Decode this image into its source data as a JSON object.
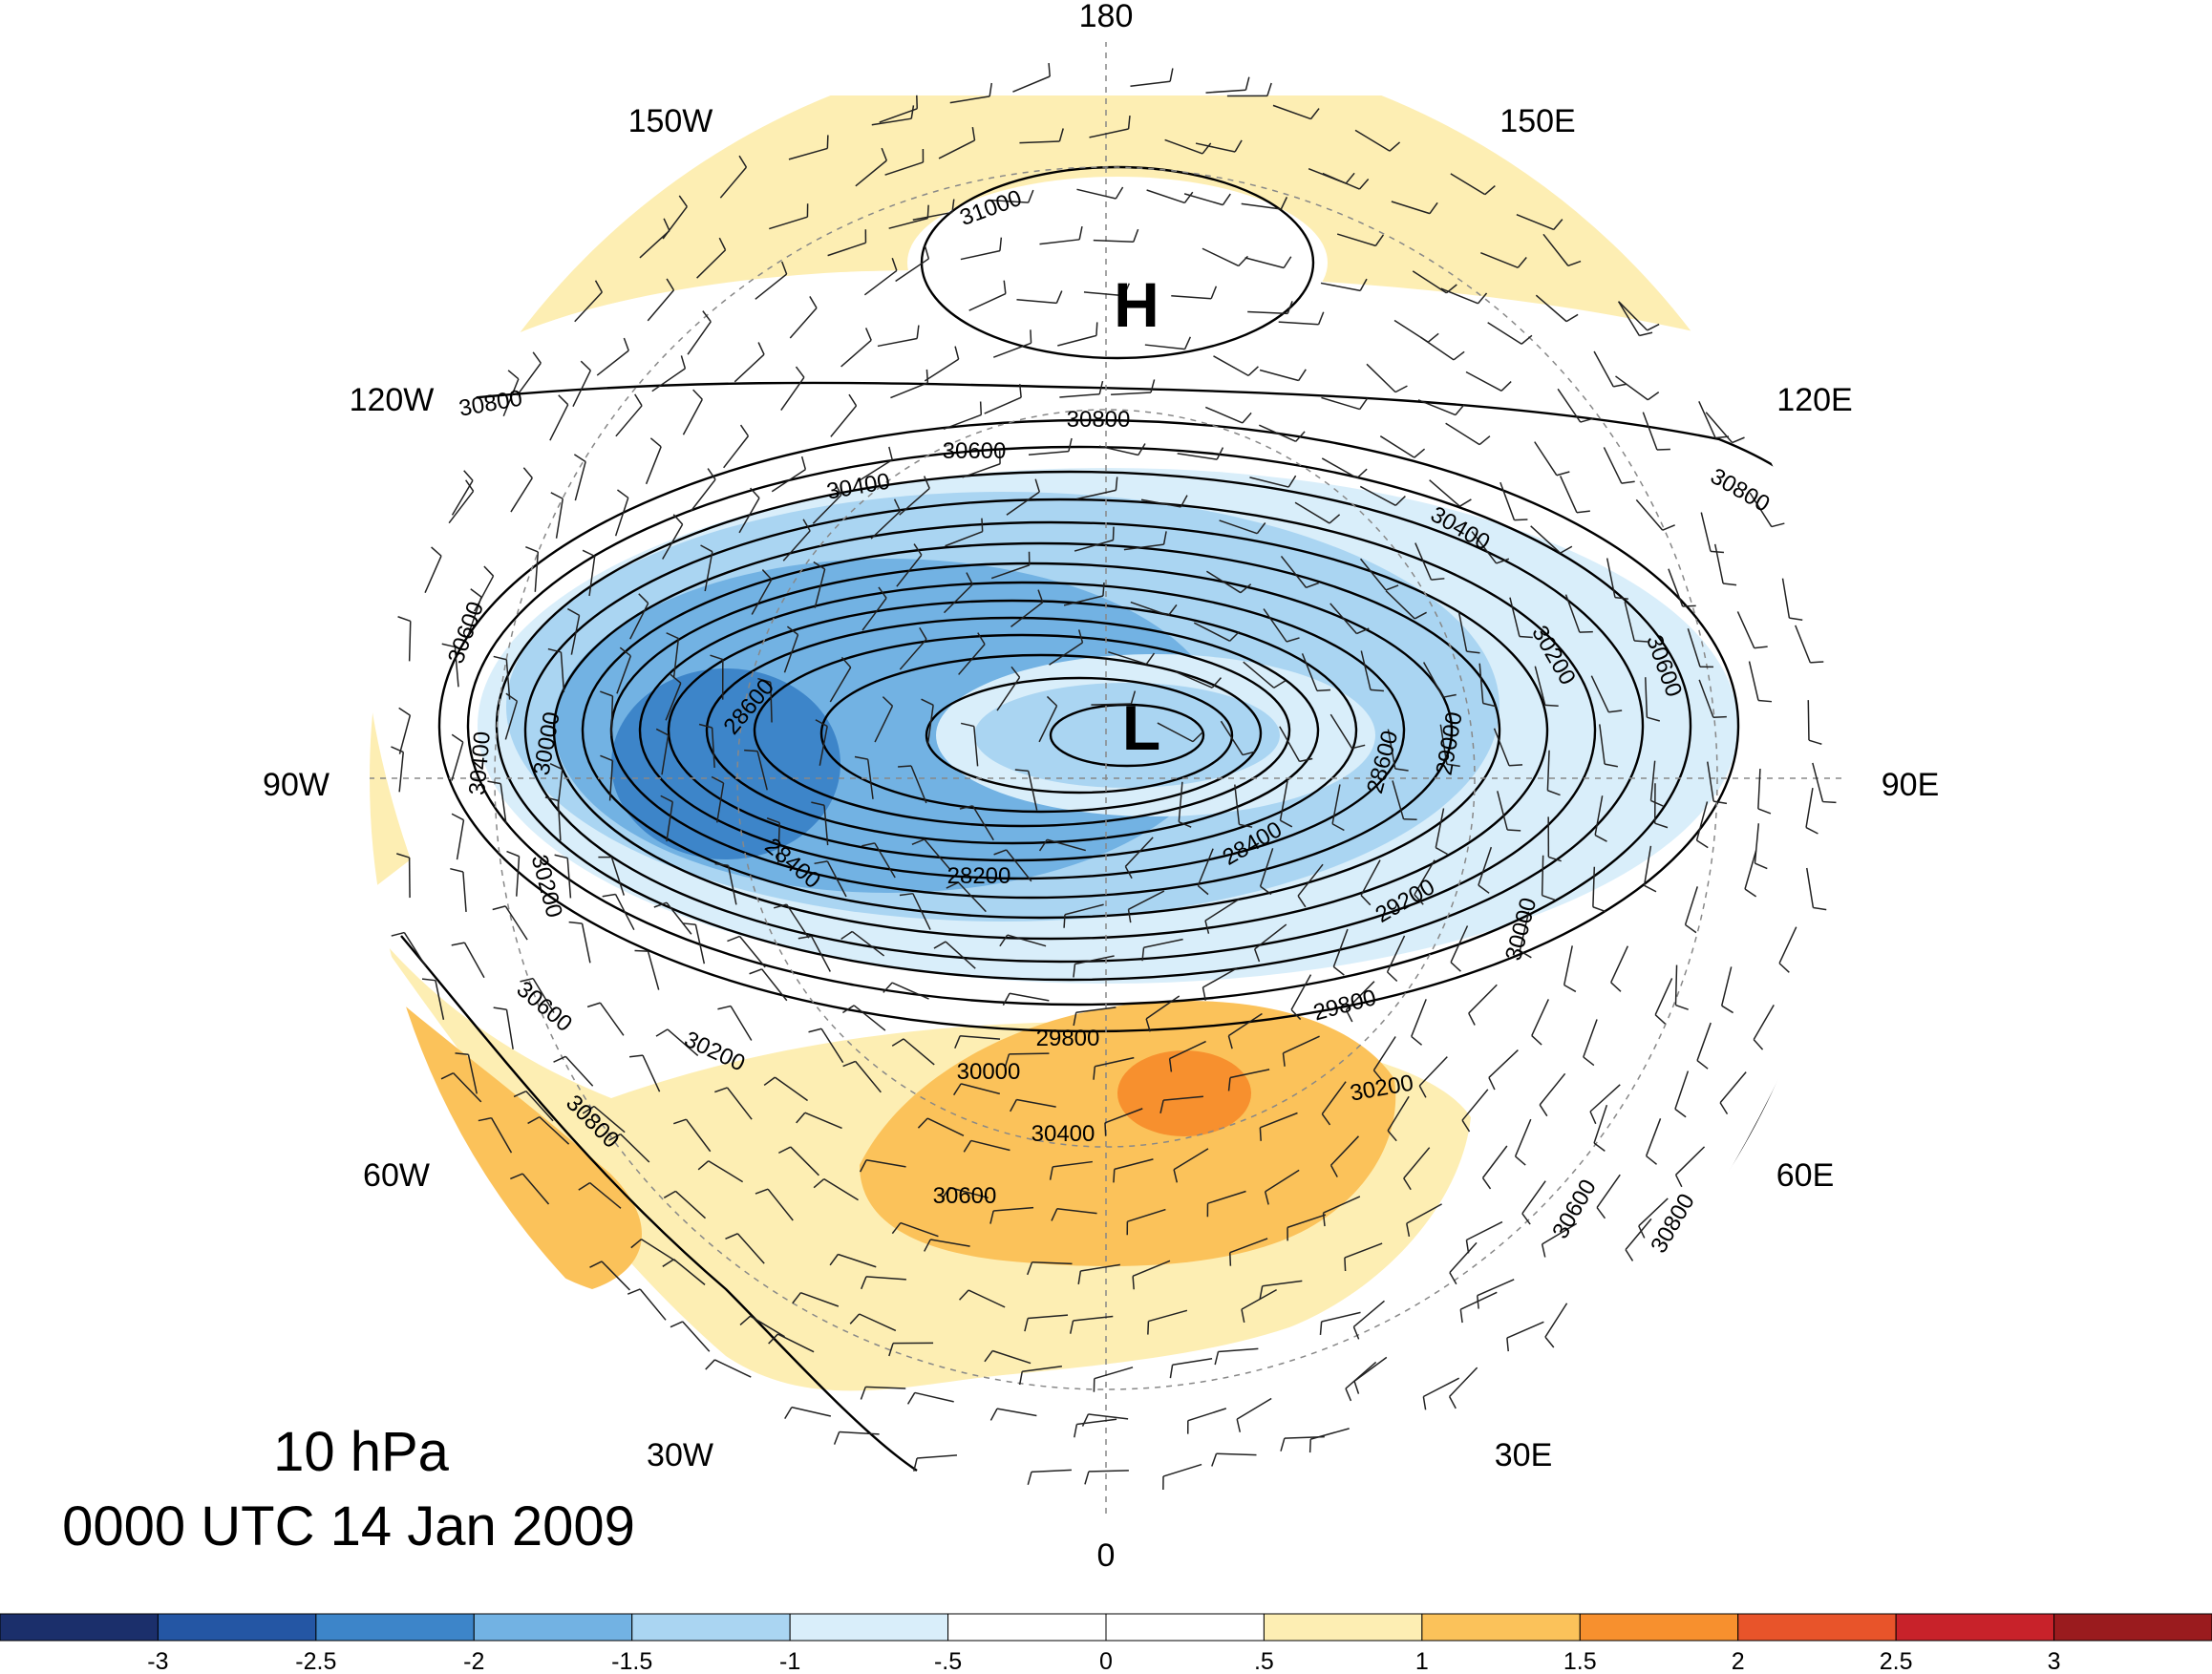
{
  "title": {
    "level": "10 hPa",
    "time": "0000 UTC 14 Jan 2009"
  },
  "longitude_labels": [
    "180",
    "150E",
    "120E",
    "90E",
    "60E",
    "30E",
    "0",
    "30W",
    "60W",
    "90W",
    "120W",
    "150W"
  ],
  "centers": {
    "high": "H",
    "low": "L"
  },
  "contour_labels": [
    "31000",
    "30800",
    "30800",
    "30800",
    "30800",
    "30800",
    "30600",
    "30600",
    "30600",
    "30600",
    "30600",
    "30600",
    "30400",
    "30400",
    "30400",
    "30400",
    "30200",
    "30200",
    "30200",
    "30200",
    "30000",
    "30000",
    "30000",
    "29800",
    "29800",
    "29200",
    "29000",
    "28600",
    "28600",
    "28400",
    "28400",
    "28200"
  ],
  "colorbar": {
    "ticks": [
      "-3",
      "-2.5",
      "-2",
      "-1.5",
      "-1",
      "-.5",
      "0",
      ".5",
      "1",
      "1.5",
      "2",
      "2.5",
      "3"
    ],
    "colors": [
      "#1b2f6b",
      "#2456a4",
      "#3d85c9",
      "#72b2e3",
      "#aad5f2",
      "#d9eefa",
      "#ffffff",
      "#ffffff",
      "#fdeeb3",
      "#fbc25a",
      "#f7902e",
      "#e8542a",
      "#c8222a",
      "#9a1b1e"
    ]
  }
}
